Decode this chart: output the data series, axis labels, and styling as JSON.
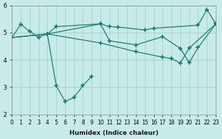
{
  "background_color": "#c8eae8",
  "grid_color": "#a0d0cc",
  "line_color": "#1a7a6e",
  "xlabel": "Humidex (Indice chaleur)",
  "ylim": [
    2,
    6
  ],
  "xlim": [
    0,
    23
  ],
  "yticks": [
    2,
    3,
    4,
    5,
    6
  ],
  "xticks": [
    0,
    1,
    2,
    3,
    4,
    5,
    6,
    7,
    8,
    9,
    10,
    11,
    12,
    13,
    14,
    15,
    16,
    17,
    18,
    19,
    20,
    21,
    22,
    23
  ],
  "series1_x": [
    0,
    1,
    2,
    3,
    4,
    5,
    10,
    11,
    12,
    15,
    16,
    21,
    22,
    23
  ],
  "series1_y": [
    4.82,
    5.3,
    5.05,
    4.83,
    4.95,
    5.22,
    5.32,
    5.22,
    5.2,
    5.1,
    5.16,
    5.27,
    5.85,
    5.32
  ],
  "series2_x": [
    4,
    5,
    6,
    7,
    8,
    9
  ],
  "series2_y": [
    4.95,
    3.05,
    2.48,
    2.62,
    3.05,
    3.4
  ],
  "series3_x": [
    0,
    4,
    10,
    11,
    14,
    17,
    19,
    20,
    21,
    23
  ],
  "series3_y": [
    4.82,
    4.95,
    5.32,
    4.7,
    4.55,
    4.85,
    4.42,
    3.9,
    4.45,
    5.32
  ],
  "series4_x": [
    0,
    4,
    10,
    14,
    17,
    18,
    19,
    20,
    23
  ],
  "series4_y": [
    4.82,
    4.95,
    4.62,
    4.3,
    4.1,
    4.05,
    3.88,
    4.43,
    5.32
  ]
}
